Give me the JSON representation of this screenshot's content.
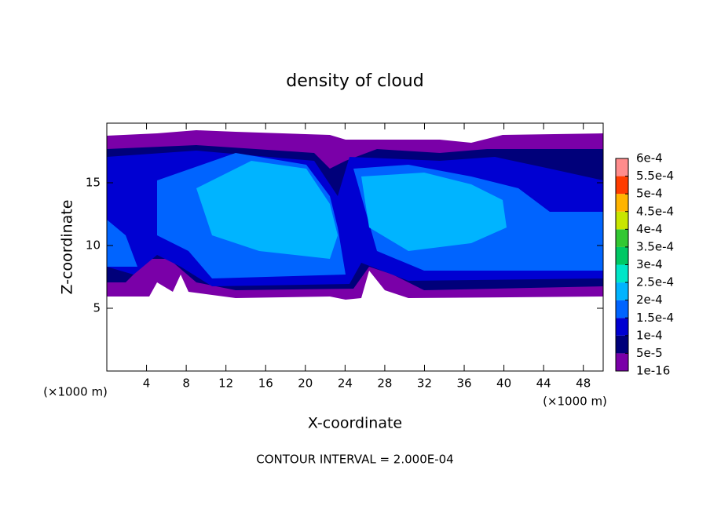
{
  "chart_data": {
    "type": "contour",
    "title": "density of cloud",
    "xlabel": "X-coordinate",
    "ylabel": "Z-coordinate",
    "unit_label": "(×1000 m)",
    "footer": "CONTOUR INTERVAL = 2.000E-04",
    "xlim": [
      0,
      50
    ],
    "xticks": [
      4,
      8,
      12,
      16,
      20,
      24,
      28,
      32,
      36,
      40,
      44,
      48
    ],
    "ylim": [
      0,
      19.75
    ],
    "yticks": [
      5,
      10,
      15
    ],
    "colorbar": {
      "lim": [
        0,
        0.0006
      ],
      "ticks": [
        {
          "value": 1e-16,
          "label": "1e-16"
        },
        {
          "value": 5e-05,
          "label": "5e-5"
        },
        {
          "value": 0.0001,
          "label": "1e-4"
        },
        {
          "value": 0.00015,
          "label": "1.5e-4"
        },
        {
          "value": 0.0002,
          "label": "2e-4"
        },
        {
          "value": 0.00025,
          "label": "2.5e-4"
        },
        {
          "value": 0.0003,
          "label": "3e-4"
        },
        {
          "value": 0.00035,
          "label": "3.5e-4"
        },
        {
          "value": 0.0004,
          "label": "4e-4"
        },
        {
          "value": 0.00045,
          "label": "4.5e-4"
        },
        {
          "value": 0.0005,
          "label": "5e-4"
        },
        {
          "value": 0.00055,
          "label": "5.5e-4"
        },
        {
          "value": 0.0006,
          "label": "6e-4"
        }
      ],
      "colors": [
        "#7a00a8",
        "#00007a",
        "#0000d2",
        "#0064ff",
        "#00b4ff",
        "#00e6c8",
        "#00c864",
        "#32c832",
        "#c8e600",
        "#ffb400",
        "#ff3c00",
        "#ff8c8c"
      ]
    }
  }
}
